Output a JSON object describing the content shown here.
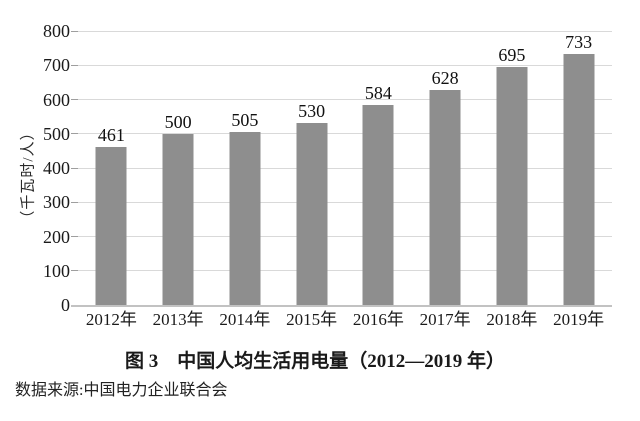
{
  "figure": {
    "caption": "图 3　中国人均生活用电量（2012—2019 年）",
    "source": "数据来源:中国电力企业联合会"
  },
  "chart_data": {
    "type": "bar",
    "title": "图 3　中国人均生活用电量（2012—2019 年）",
    "categories": [
      "2012年",
      "2013年",
      "2014年",
      "2015年",
      "2016年",
      "2017年",
      "2018年",
      "2019年"
    ],
    "values": [
      461,
      500,
      505,
      530,
      584,
      628,
      695,
      733
    ],
    "xlabel": "",
    "ylabel": "（千瓦时/人）",
    "ylim": [
      0,
      800
    ],
    "yticks": [
      0,
      100,
      200,
      300,
      400,
      500,
      600,
      700,
      800
    ],
    "grid": true,
    "legend": false,
    "data_labels": true,
    "source_note": "数据来源:中国电力企业联合会",
    "colors": {
      "bar": "#8e8e8e",
      "gridline": "#d9d9d9",
      "tickmark": "#9e9e9e",
      "axis_line": "#c2c2c2",
      "text": "#1a1a1a"
    }
  }
}
